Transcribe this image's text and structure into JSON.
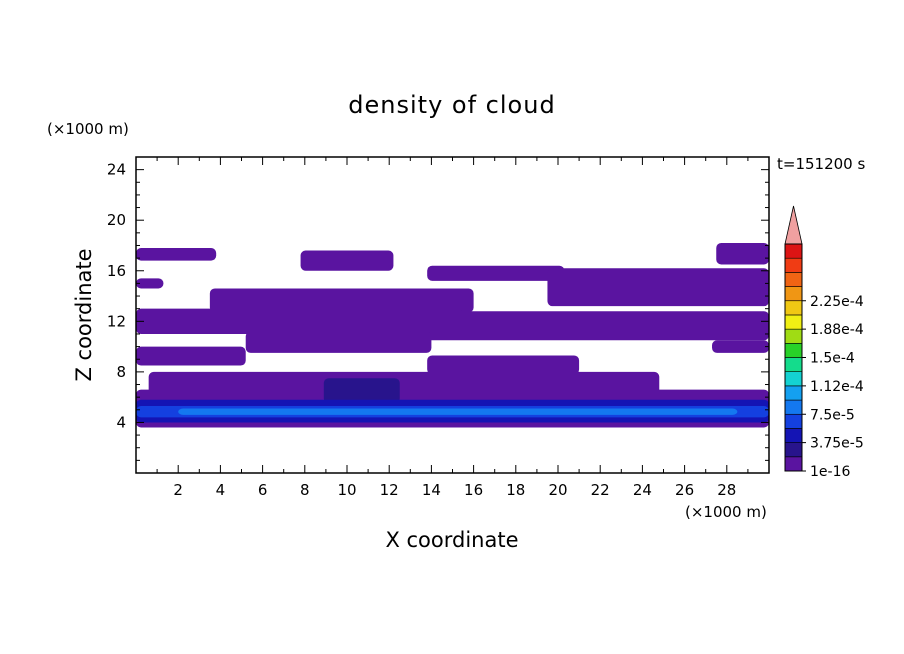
{
  "chart_data": {
    "type": "heatmap",
    "title": "density of cloud",
    "xlabel": "X coordinate",
    "ylabel": "Z coordinate",
    "x_unit": "(×1000 m)",
    "y_unit": "(×1000 m)",
    "time_label": "t=151200 s",
    "xlim": [
      0,
      30
    ],
    "ylim": [
      0,
      25
    ],
    "x_ticks": [
      2,
      4,
      6,
      8,
      10,
      12,
      14,
      16,
      18,
      20,
      22,
      24,
      26,
      28
    ],
    "y_ticks": [
      4,
      8,
      12,
      16,
      20,
      24
    ],
    "colorbar": {
      "labels": [
        "1e-16",
        "3.75e-5",
        "7.5e-5",
        "1.12e-4",
        "1.5e-4",
        "1.88e-4",
        "2.25e-4"
      ],
      "level_colors": [
        "#5a14a0",
        "#28148c",
        "#1414b4",
        "#1440e0",
        "#1478f0",
        "#14a0f0",
        "#14d2d2",
        "#14dc8c",
        "#28d228",
        "#a0dc14",
        "#f0f014",
        "#f0c814",
        "#f09614",
        "#f06414",
        "#f03c14",
        "#dc1414"
      ],
      "extend_color": "#f0a0a0"
    },
    "regions": [
      {
        "level": 1,
        "z": [
          16.8,
          17.8
        ],
        "x": [
          0,
          3.8
        ]
      },
      {
        "level": 1,
        "z": [
          14.6,
          15.4
        ],
        "x": [
          0,
          1.3
        ]
      },
      {
        "level": 1,
        "z": [
          16.0,
          17.6
        ],
        "x": [
          7.8,
          12.2
        ]
      },
      {
        "level": 1,
        "z": [
          16.5,
          18.2
        ],
        "x": [
          27.5,
          30
        ]
      },
      {
        "level": 1,
        "z": [
          15.2,
          16.4
        ],
        "x": [
          13.8,
          20.3
        ]
      },
      {
        "level": 1,
        "z": [
          13.2,
          16.2
        ],
        "x": [
          19.5,
          30
        ]
      },
      {
        "level": 1,
        "z": [
          12.7,
          14.6
        ],
        "x": [
          3.5,
          16.0
        ]
      },
      {
        "level": 1,
        "z": [
          11.0,
          13.0
        ],
        "x": [
          0,
          15.5
        ]
      },
      {
        "level": 1,
        "z": [
          10.5,
          12.8
        ],
        "x": [
          13.0,
          30
        ]
      },
      {
        "level": 1,
        "z": [
          9.5,
          11.2
        ],
        "x": [
          5.2,
          14.0
        ]
      },
      {
        "level": 1,
        "z": [
          8.5,
          10.0
        ],
        "x": [
          0,
          5.2
        ]
      },
      {
        "level": 1,
        "z": [
          9.5,
          10.5
        ],
        "x": [
          27.3,
          30
        ]
      },
      {
        "level": 1,
        "z": [
          7.8,
          9.3
        ],
        "x": [
          13.8,
          21.0
        ]
      },
      {
        "level": 1,
        "z": [
          6.0,
          8.0
        ],
        "x": [
          0.6,
          24.8
        ]
      },
      {
        "level": 1,
        "z": [
          3.6,
          6.6
        ],
        "x": [
          0,
          30
        ]
      },
      {
        "level": 2,
        "z": [
          5.5,
          7.5
        ],
        "x": [
          8.9,
          12.5
        ]
      },
      {
        "level": 3,
        "z": [
          4.0,
          5.8
        ],
        "x": [
          0,
          30
        ]
      },
      {
        "level": 4,
        "z": [
          4.4,
          5.3
        ],
        "x": [
          0,
          30
        ]
      },
      {
        "level": 5,
        "z": [
          4.6,
          5.1
        ],
        "x": [
          2.0,
          28.5
        ]
      }
    ]
  }
}
